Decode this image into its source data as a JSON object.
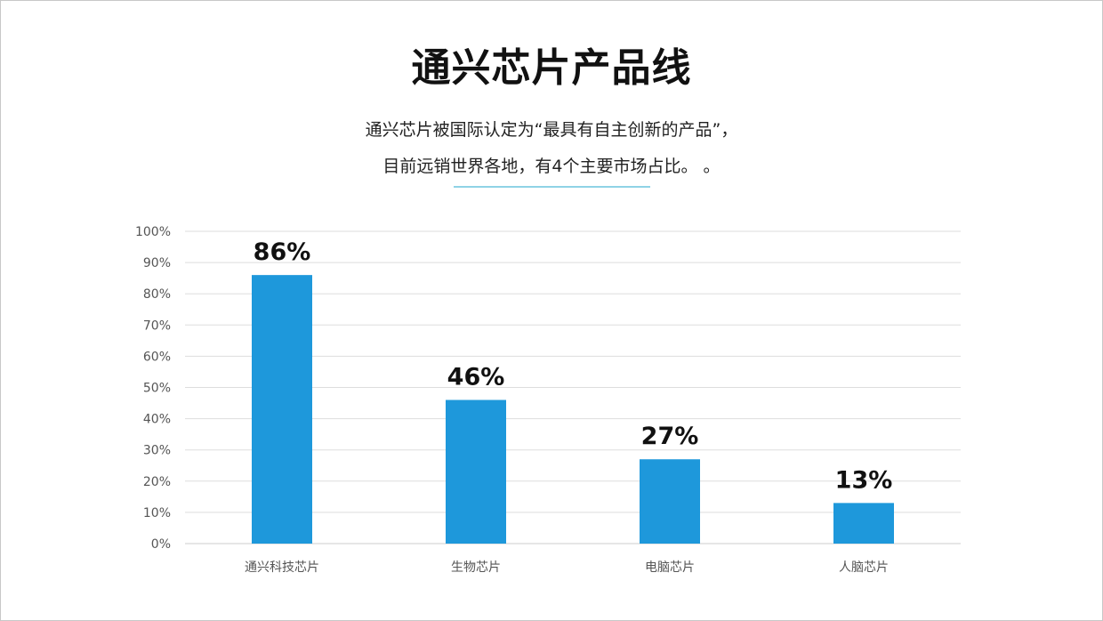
{
  "header": {
    "title": "通兴芯片产品线",
    "subtitle_line1": "通兴芯片被国际认定为“最具有自主创新的产品”，",
    "subtitle_line2": "目前远销世界各地，有4个主要市场占比。 。"
  },
  "colors": {
    "bar": "#1e98db",
    "grid": "#dddddd",
    "divider": "#8fd3e6"
  },
  "chart_data": {
    "type": "bar",
    "categories": [
      "通兴科技芯片",
      "生物芯片",
      "电脑芯片",
      "人脑芯片"
    ],
    "values": [
      86,
      46,
      27,
      13
    ],
    "data_labels": [
      "86%",
      "46%",
      "27%",
      "13%"
    ],
    "y_ticks": [
      "0%",
      "10%",
      "20%",
      "30%",
      "40%",
      "50%",
      "60%",
      "70%",
      "80%",
      "90%",
      "100%"
    ],
    "ylim": [
      0,
      100
    ],
    "grid": true,
    "legend": "none"
  }
}
